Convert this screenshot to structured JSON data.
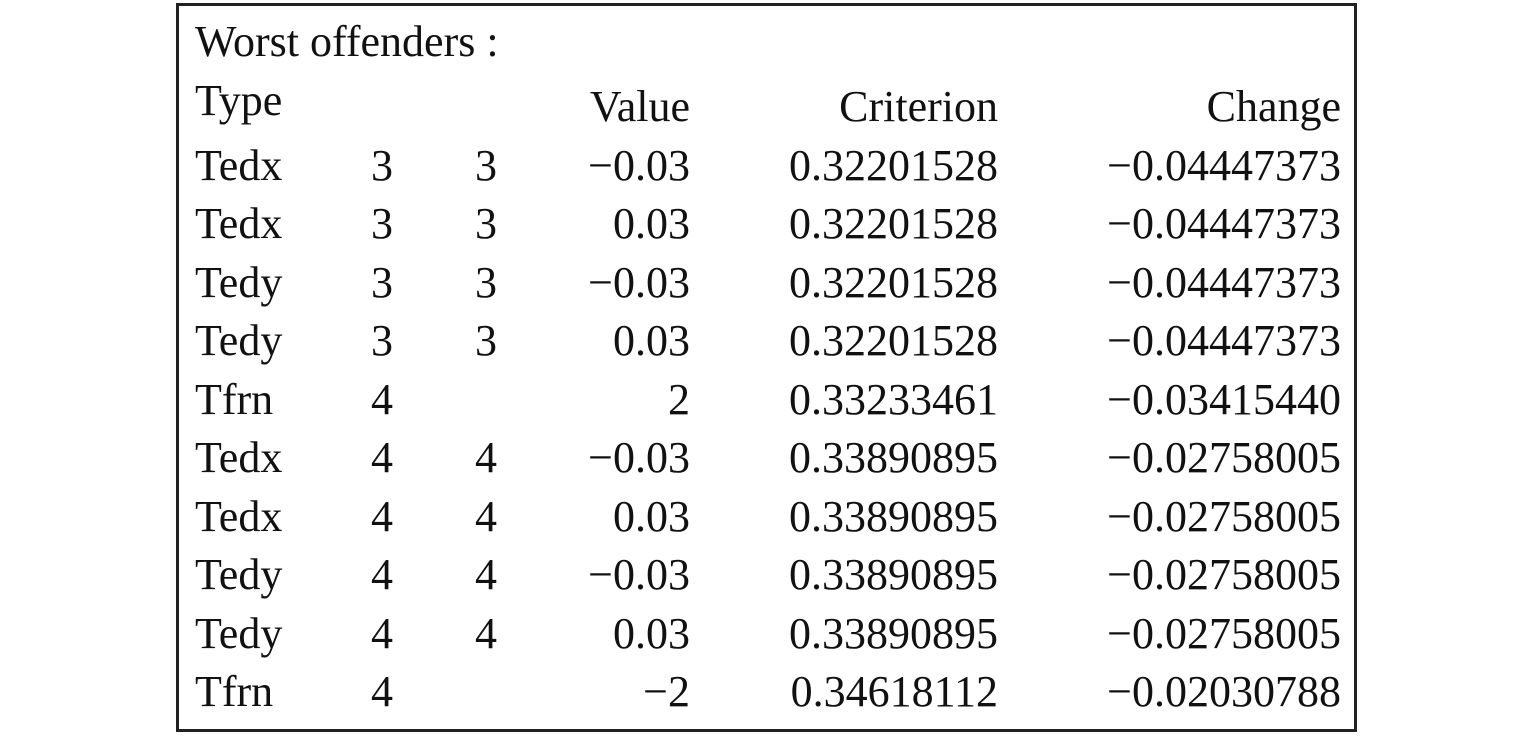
{
  "table": {
    "title": "Worst offenders :",
    "headers": {
      "type": "Type",
      "col2": "",
      "col3": "",
      "value": "Value",
      "criterion": "Criterion",
      "change": "Change"
    },
    "rows": [
      {
        "type": "Tedx",
        "i": "3",
        "j": "3",
        "value": "−0.03",
        "criterion": "0.32201528",
        "change": "−0.04447373"
      },
      {
        "type": "Tedx",
        "i": "3",
        "j": "3",
        "value": "0.03",
        "criterion": "0.32201528",
        "change": "−0.04447373"
      },
      {
        "type": "Tedy",
        "i": "3",
        "j": "3",
        "value": "−0.03",
        "criterion": "0.32201528",
        "change": "−0.04447373"
      },
      {
        "type": "Tedy",
        "i": "3",
        "j": "3",
        "value": "0.03",
        "criterion": "0.32201528",
        "change": "−0.04447373"
      },
      {
        "type": "Tfrn",
        "i": "4",
        "j": "",
        "value": "2",
        "criterion": "0.33233461",
        "change": "−0.03415440"
      },
      {
        "type": "Tedx",
        "i": "4",
        "j": "4",
        "value": "−0.03",
        "criterion": "0.33890895",
        "change": "−0.02758005"
      },
      {
        "type": "Tedx",
        "i": "4",
        "j": "4",
        "value": "0.03",
        "criterion": "0.33890895",
        "change": "−0.02758005"
      },
      {
        "type": "Tedy",
        "i": "4",
        "j": "4",
        "value": "−0.03",
        "criterion": "0.33890895",
        "change": "−0.02758005"
      },
      {
        "type": "Tedy",
        "i": "4",
        "j": "4",
        "value": "0.03",
        "criterion": "0.33890895",
        "change": "−0.02758005"
      },
      {
        "type": "Tfrn",
        "i": "4",
        "j": "",
        "value": "−2",
        "criterion": "0.34618112",
        "change": "−0.02030788"
      }
    ]
  }
}
